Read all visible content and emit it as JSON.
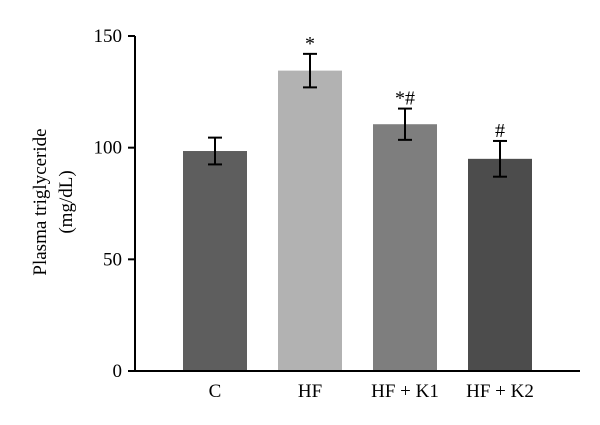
{
  "chart_data": {
    "type": "bar",
    "categories": [
      "C",
      "HF",
      "HF + K1",
      "HF + K2"
    ],
    "values": [
      98.5,
      134.5,
      110.5,
      95
    ],
    "errors": [
      6,
      7.5,
      7,
      8
    ],
    "annotations": [
      "",
      "*",
      "*#",
      "#"
    ],
    "colors": [
      "#5e5e5e",
      "#b2b2b2",
      "#7e7e7e",
      "#4c4c4c"
    ],
    "ylabel": [
      "Plasma triglyceride",
      "(mg/dL)"
    ],
    "ylim": [
      0,
      150
    ],
    "yticks": [
      0,
      50,
      100,
      150
    ],
    "grid": false
  }
}
